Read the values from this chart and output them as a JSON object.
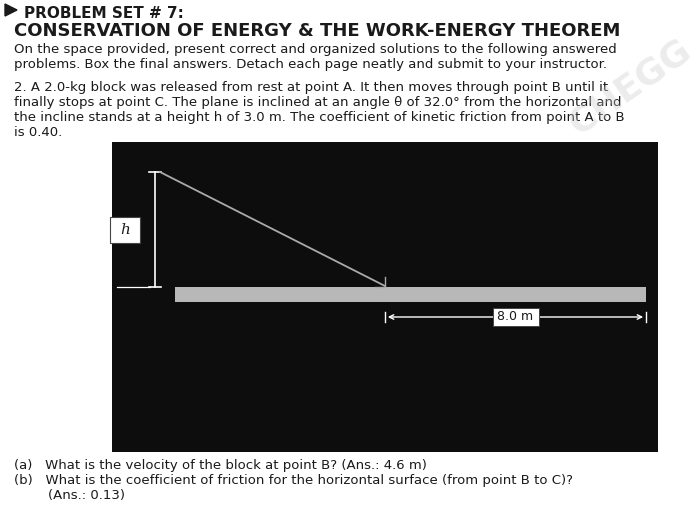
{
  "title_line1": "PROBLEM SET # 7:",
  "title_line2": "CONSERVATION OF ENERGY & THE WORK-ENERGY THEOREM",
  "intro_line1": "On the space provided, present correct and organized solutions to the following answered",
  "intro_line2": "problems. Box the final answers. Detach each page neatly and submit to your instructor.",
  "prob_line1": "2. A 2.0-kg block was released from rest at point A. It then moves through point B until it",
  "prob_line2": "finally stops at point C. The plane is inclined at an angle θ of 32.0° from the horizontal and",
  "prob_line3": "the incline stands at a height h of 3.0 m. The coefficient of kinetic friction from point A to B",
  "prob_line4": "is 0.40.",
  "ans_a": "(a)   What is the velocity of the block at point B? (Ans.: 4.6 m)",
  "ans_b1": "(b)   What is the coefficient of friction for the horizontal surface (from point B to C)?",
  "ans_b2": "        (Ans.: 0.13)",
  "label_h": "h",
  "label_8m": "8.0 m",
  "bg_color": "#ffffff",
  "diagram_bg": "#0d0d0d",
  "floor_color": "#b8b8b8",
  "line_color": "#aaaaaa",
  "white": "#ffffff",
  "text_color": "#1a1a1a",
  "watermark_color": "#c8c8c8",
  "watermark_alpha": 0.35
}
